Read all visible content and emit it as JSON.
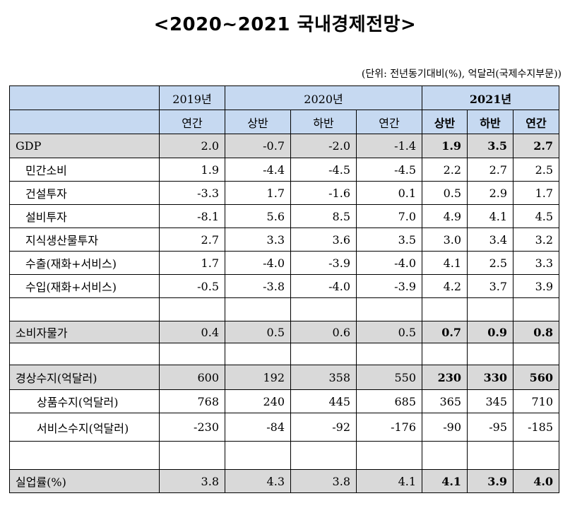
{
  "title": "<2020~2021 국내경제전망>",
  "unit": "(단위: 전년동기대비(%), 억달러(국제수지부문))",
  "header": {
    "y2019": "2019년",
    "y2020": "2020년",
    "y2021": "2021년",
    "annual": "연간",
    "first_half": "상반",
    "second_half": "하반"
  },
  "rows": [
    {
      "label": "GDP",
      "v": [
        "2.0",
        "-0.7",
        "-2.0",
        "-1.4",
        "1.9",
        "3.5",
        "2.7"
      ]
    },
    {
      "label": "민간소비",
      "v": [
        "1.9",
        "-4.4",
        "-4.5",
        "-4.5",
        "2.2",
        "2.7",
        "2.5"
      ]
    },
    {
      "label": "건설투자",
      "v": [
        "-3.3",
        "1.7",
        "-1.6",
        "0.1",
        "0.5",
        "2.9",
        "1.7"
      ]
    },
    {
      "label": "설비투자",
      "v": [
        "-8.1",
        "5.6",
        "8.5",
        "7.0",
        "4.9",
        "4.1",
        "4.5"
      ]
    },
    {
      "label": "지식생산물투자",
      "v": [
        "2.7",
        "3.3",
        "3.6",
        "3.5",
        "3.0",
        "3.4",
        "3.2"
      ]
    },
    {
      "label": "수출(재화+서비스)",
      "v": [
        "1.7",
        "-4.0",
        "-3.9",
        "-4.0",
        "4.1",
        "2.5",
        "3.3"
      ]
    },
    {
      "label": "수입(재화+서비스)",
      "v": [
        "-0.5",
        "-3.8",
        "-4.0",
        "-3.9",
        "4.2",
        "3.7",
        "3.9"
      ]
    },
    {
      "label": "소비자물가",
      "v": [
        "0.4",
        "0.5",
        "0.6",
        "0.5",
        "0.7",
        "0.9",
        "0.8"
      ]
    },
    {
      "label": "경상수지(억달러)",
      "v": [
        "600",
        "192",
        "358",
        "550",
        "230",
        "330",
        "560"
      ]
    },
    {
      "label": "상품수지(억달러)",
      "v": [
        "768",
        "240",
        "445",
        "685",
        "365",
        "345",
        "710"
      ]
    },
    {
      "label": "서비스수지(억달러)",
      "v": [
        "-230",
        "-84",
        "-92",
        "-176",
        "-90",
        "-95",
        "-185"
      ]
    },
    {
      "label": "실업률(%)",
      "v": [
        "3.8",
        "4.3",
        "3.8",
        "4.1",
        "4.1",
        "3.9",
        "4.0"
      ]
    }
  ],
  "colors": {
    "header_bg": "#c6d9f1",
    "highlight_bg": "#d9d9d9"
  }
}
